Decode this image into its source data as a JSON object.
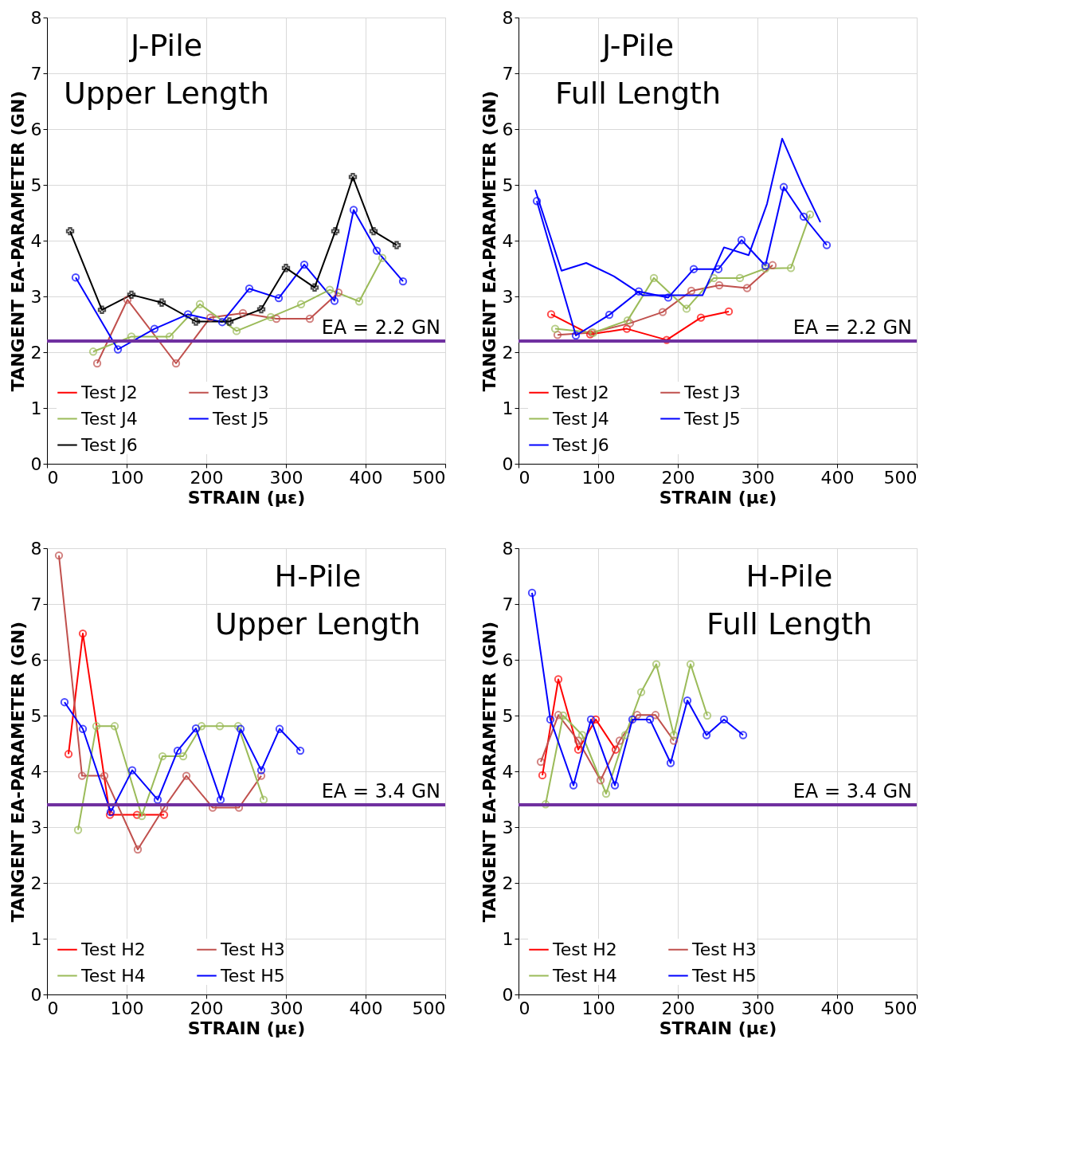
{
  "chart_data": [
    {
      "type": "line",
      "title": "J-Pile\nUpper Length",
      "xlabel": "STRAIN  (με)",
      "ylabel": "TANGENT  EA-PARAMETER  (GN)",
      "xlim": [
        0,
        500
      ],
      "xticks": [
        0,
        100,
        200,
        300,
        400,
        500
      ],
      "ylim": [
        0,
        8
      ],
      "yticks": [
        0,
        1,
        2,
        3,
        4,
        5,
        6,
        7,
        8
      ],
      "grid": true,
      "legend": "bottom left",
      "line_style": "solid",
      "ref_lines": [
        {
          "axis": "y",
          "value": 2.2,
          "label": "EA = 2.2 GN",
          "color": "#7030a0"
        }
      ],
      "series": [
        {
          "name": "Test J2",
          "color": "#ff0000",
          "marker": "circle"
        },
        {
          "name": "Test J3",
          "color": "#c0504d",
          "marker": "circle",
          "x": [
            63,
            101,
            162,
            205,
            246,
            288,
            330,
            366
          ],
          "values": [
            1.8,
            2.94,
            1.8,
            2.62,
            2.7,
            2.6,
            2.6,
            3.07
          ]
        },
        {
          "name": "Test J4",
          "color": "#9bbb59",
          "marker": "circle",
          "x": [
            58,
            106,
            154,
            192,
            238,
            281,
            319,
            355,
            392,
            421
          ],
          "values": [
            2.01,
            2.28,
            2.28,
            2.86,
            2.38,
            2.63,
            2.86,
            3.12,
            2.91,
            3.69
          ]
        },
        {
          "name": "Test J5",
          "color": "#0000ff",
          "marker": "circle",
          "x": [
            36,
            89,
            135,
            177,
            220,
            254,
            291,
            323,
            361,
            385,
            414,
            447
          ],
          "values": [
            3.34,
            2.05,
            2.42,
            2.68,
            2.54,
            3.14,
            2.97,
            3.57,
            2.92,
            4.55,
            3.82,
            3.27
          ]
        },
        {
          "name": "Test J6",
          "color": "#000000",
          "marker": "cross",
          "x": [
            29,
            69,
            106,
            144,
            187,
            229,
            269,
            300,
            336,
            362,
            384,
            410,
            439
          ],
          "values": [
            4.17,
            2.76,
            3.03,
            2.89,
            2.55,
            2.55,
            2.77,
            3.51,
            3.16,
            4.17,
            5.14,
            4.17,
            3.92
          ]
        }
      ]
    },
    {
      "type": "line",
      "title": "J-Pile\nFull Length",
      "xlabel": "STRAIN  (με)",
      "ylabel": "TANGENT  EA-PARAMETER  (GN)",
      "xlim": [
        0,
        500
      ],
      "xticks": [
        0,
        100,
        200,
        300,
        400,
        500
      ],
      "ylim": [
        0,
        8
      ],
      "yticks": [
        0,
        1,
        2,
        3,
        4,
        5,
        6,
        7,
        8
      ],
      "grid": true,
      "legend": "bottom left",
      "line_style": "solid",
      "ref_lines": [
        {
          "axis": "y",
          "value": 2.2,
          "label": "EA = 2.2 GN",
          "color": "#7030a0"
        }
      ],
      "series": [
        {
          "name": "Test J2",
          "color": "#ff0000",
          "marker": "circle",
          "x": [
            41,
            90,
            136,
            186,
            229,
            264
          ],
          "values": [
            2.68,
            2.32,
            2.42,
            2.22,
            2.62,
            2.73
          ]
        },
        {
          "name": "Test J3",
          "color": "#c0504d",
          "marker": "circle",
          "x": [
            49,
            92,
            140,
            181,
            217,
            252,
            287,
            319
          ],
          "values": [
            2.31,
            2.35,
            2.52,
            2.72,
            3.1,
            3.2,
            3.15,
            3.56
          ]
        },
        {
          "name": "Test J4",
          "color": "#9bbb59",
          "marker": "circle",
          "x": [
            46,
            94,
            137,
            170,
            211,
            245,
            278,
            310,
            342,
            366
          ],
          "values": [
            2.42,
            2.35,
            2.57,
            3.33,
            2.78,
            3.33,
            3.33,
            3.5,
            3.51,
            4.47
          ]
        },
        {
          "name": "Test J5",
          "color": "#0000ff",
          "marker": "circle",
          "x": [
            23,
            72,
            114,
            151,
            188,
            220,
            251,
            280,
            310,
            333,
            358,
            387
          ],
          "values": [
            4.71,
            2.3,
            2.67,
            3.09,
            2.98,
            3.49,
            3.49,
            4.01,
            3.55,
            4.96,
            4.43,
            3.92
          ]
        },
        {
          "name": "Test J6",
          "color": "#0000ff",
          "marker": "none",
          "x": [
            21,
            54,
            85,
            120,
            156,
            231,
            258,
            289,
            312,
            331,
            355,
            379
          ],
          "values": [
            4.91,
            3.46,
            3.6,
            3.36,
            3.02,
            3.02,
            3.88,
            3.74,
            4.66,
            5.83,
            5.04,
            4.33
          ]
        }
      ]
    },
    {
      "type": "line",
      "title": "H-Pile\nUpper Length",
      "xlabel": "STRAIN  (με)",
      "ylabel": "TANGENT  EA-PARAMETER  (GN)",
      "xlim": [
        0,
        500
      ],
      "xticks": [
        0,
        100,
        200,
        300,
        400,
        500
      ],
      "ylim": [
        0,
        8
      ],
      "yticks": [
        0,
        1,
        2,
        3,
        4,
        5,
        6,
        7,
        8
      ],
      "grid": true,
      "legend": "bottom left",
      "line_style": "solid",
      "ref_lines": [
        {
          "axis": "y",
          "value": 3.4,
          "label": "EA = 3.4 GN",
          "color": "#7030a0"
        }
      ],
      "series": [
        {
          "name": "Test H2",
          "color": "#ff0000",
          "marker": "circle",
          "x": [
            27,
            45,
            79,
            113,
            147
          ],
          "values": [
            4.31,
            6.47,
            3.22,
            3.22,
            3.22
          ]
        },
        {
          "name": "Test H3",
          "color": "#c0504d",
          "marker": "circle",
          "x": [
            15,
            44,
            72,
            114,
            147,
            175,
            208,
            241,
            269
          ],
          "values": [
            7.87,
            3.92,
            3.92,
            2.6,
            3.35,
            3.92,
            3.35,
            3.35,
            3.92
          ]
        },
        {
          "name": "Test H4",
          "color": "#9bbb59",
          "marker": "circle",
          "x": [
            39,
            62,
            85,
            119,
            145,
            171,
            194,
            217,
            240,
            272
          ],
          "values": [
            2.95,
            4.81,
            4.81,
            3.2,
            4.27,
            4.27,
            4.81,
            4.81,
            4.81,
            3.49
          ]
        },
        {
          "name": "Test H5",
          "color": "#0000ff",
          "marker": "circle",
          "x": [
            22,
            45,
            80,
            107,
            139,
            164,
            187,
            218,
            243,
            269,
            292,
            318
          ],
          "values": [
            5.24,
            4.76,
            3.27,
            4.02,
            3.49,
            4.37,
            4.77,
            3.49,
            4.76,
            4.02,
            4.76,
            4.37
          ]
        }
      ]
    },
    {
      "type": "line",
      "title": "H-Pile\nFull Length",
      "xlabel": "STRAIN  (με)",
      "ylabel": "TANGENT  EA-PARAMETER  (GN)",
      "xlim": [
        0,
        500
      ],
      "xticks": [
        0,
        100,
        200,
        300,
        400,
        500
      ],
      "ylim": [
        0,
        8
      ],
      "yticks": [
        0,
        1,
        2,
        3,
        4,
        5,
        6,
        7,
        8
      ],
      "grid": true,
      "legend": "bottom left",
      "line_style": "solid",
      "ref_lines": [
        {
          "axis": "y",
          "value": 3.4,
          "label": "EA = 3.4 GN",
          "color": "#7030a0"
        }
      ],
      "series": [
        {
          "name": "Test H2",
          "color": "#ff0000",
          "marker": "circle",
          "x": [
            30,
            50,
            75,
            97,
            122
          ],
          "values": [
            3.93,
            5.65,
            4.39,
            4.93,
            4.39
          ]
        },
        {
          "name": "Test H3",
          "color": "#c0504d",
          "marker": "circle",
          "x": [
            28,
            50,
            75,
            103,
            127,
            149,
            172,
            195
          ],
          "values": [
            4.17,
            5.01,
            4.55,
            3.84,
            4.55,
            5.01,
            5.01,
            4.55
          ]
        },
        {
          "name": "Test H4",
          "color": "#9bbb59",
          "marker": "circle",
          "x": [
            34,
            56,
            80,
            110,
            134,
            154,
            173,
            195,
            216,
            237
          ],
          "values": [
            3.41,
            5.0,
            4.65,
            3.6,
            4.65,
            5.42,
            5.92,
            4.65,
            5.92,
            5.0
          ]
        },
        {
          "name": "Test H5",
          "color": "#0000ff",
          "marker": "circle",
          "x": [
            17,
            40,
            69,
            91,
            121,
            143,
            165,
            191,
            212,
            236,
            258,
            282
          ],
          "values": [
            7.2,
            4.93,
            3.75,
            4.93,
            3.75,
            4.93,
            4.93,
            4.15,
            5.27,
            4.65,
            4.93,
            4.65
          ]
        }
      ]
    }
  ]
}
